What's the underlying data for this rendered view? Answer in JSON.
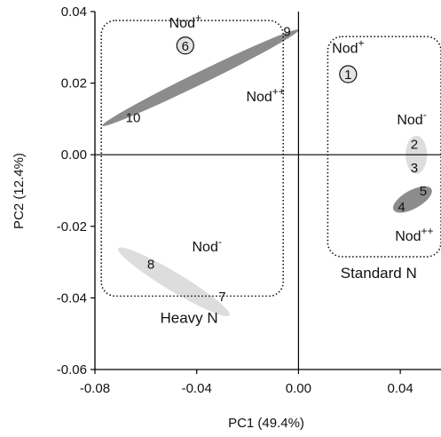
{
  "chart_data": {
    "type": "scatter",
    "xlabel": "PC1 (49.4%)",
    "ylabel": "PC2 (12.4%)",
    "xlim": [
      -0.08,
      0.056
    ],
    "ylim": [
      -0.06,
      0.04
    ],
    "x_ticks": [
      {
        "value": -0.08,
        "label": "-0.08"
      },
      {
        "value": -0.04,
        "label": "-0.04"
      },
      {
        "value": 0.0,
        "label": "0.00"
      },
      {
        "value": 0.04,
        "label": "0.04"
      }
    ],
    "y_ticks": [
      {
        "value": 0.04,
        "label": "0.04"
      },
      {
        "value": 0.02,
        "label": "0.02"
      },
      {
        "value": 0.0,
        "label": "0.00"
      },
      {
        "value": -0.02,
        "label": "-0.02"
      },
      {
        "value": -0.04,
        "label": "-0.04"
      },
      {
        "value": -0.06,
        "label": "-0.06"
      }
    ],
    "zero_lines": true,
    "points": [
      {
        "label": "1",
        "x": 0.0195,
        "y": 0.0225,
        "circled": true
      },
      {
        "label": "2",
        "x": 0.0455,
        "y": 0.003
      },
      {
        "label": "3",
        "x": 0.0455,
        "y": -0.0035
      },
      {
        "label": "4",
        "x": 0.0405,
        "y": -0.0145
      },
      {
        "label": "5",
        "x": 0.049,
        "y": -0.01
      },
      {
        "label": "6",
        "x": -0.0445,
        "y": 0.0305,
        "circled": true
      },
      {
        "label": "7",
        "x": -0.03,
        "y": -0.0395
      },
      {
        "label": "8",
        "x": -0.058,
        "y": -0.0305
      },
      {
        "label": "9",
        "x": -0.0045,
        "y": 0.0345
      },
      {
        "label": "10",
        "x": -0.065,
        "y": 0.0105
      }
    ],
    "ellipses": [
      {
        "name": "Heavy N Nod++",
        "points": [
          "9",
          "10"
        ],
        "fill": "#8c8c8c",
        "cx": -0.0385,
        "cy": 0.0215,
        "rx": 0.043,
        "ry": 0.0024,
        "angle_deg": -26
      },
      {
        "name": "Heavy N Nod-",
        "points": [
          "7",
          "8"
        ],
        "fill": "#dddddd",
        "cx": -0.049,
        "cy": -0.0355,
        "rx": 0.0255,
        "ry": 0.0036,
        "angle_deg": 31
      },
      {
        "name": "Standard N Nod-",
        "points": [
          "2",
          "3"
        ],
        "fill": "#dddddd",
        "cx": 0.0463,
        "cy": 0.0,
        "rx": 0.0042,
        "ry": 0.0075,
        "angle_deg": 0
      },
      {
        "name": "Standard N Nod++",
        "points": [
          "4",
          "5"
        ],
        "fill": "#8c8c8c",
        "cx": 0.0448,
        "cy": -0.0125,
        "rx": 0.0085,
        "ry": 0.0036,
        "angle_deg": -29
      }
    ],
    "groups": [
      {
        "label": "Heavy N",
        "box": {
          "x0": -0.0775,
          "x1": -0.006,
          "y0": -0.0395,
          "y1": 0.0375
        },
        "label_at": {
          "x": -0.043,
          "y": -0.047
        }
      },
      {
        "label": "Standard N",
        "box": {
          "x0": 0.0115,
          "x1": 0.056,
          "y0": -0.0285,
          "y1": 0.033
        },
        "label_at": {
          "x": 0.0315,
          "y": -0.0345
        }
      }
    ],
    "annotations": [
      {
        "text": "Nod",
        "sup": "+",
        "x": -0.0445,
        "y": 0.0355
      },
      {
        "text": "Nod",
        "sup": "++",
        "x": -0.013,
        "y": 0.015
      },
      {
        "text": "Nod",
        "sup": "-",
        "x": -0.036,
        "y": -0.027
      },
      {
        "text": "Nod",
        "sup": "+",
        "x": 0.0195,
        "y": 0.0285
      },
      {
        "text": "Nod",
        "sup": "-",
        "x": 0.0445,
        "y": 0.0085
      },
      {
        "text": "Nod",
        "sup": "++",
        "x": 0.0455,
        "y": -0.024
      }
    ],
    "colors": {
      "dark_ellipse": "#8c8c8c",
      "light_ellipse": "#dddddd",
      "axes": "#000000"
    }
  }
}
